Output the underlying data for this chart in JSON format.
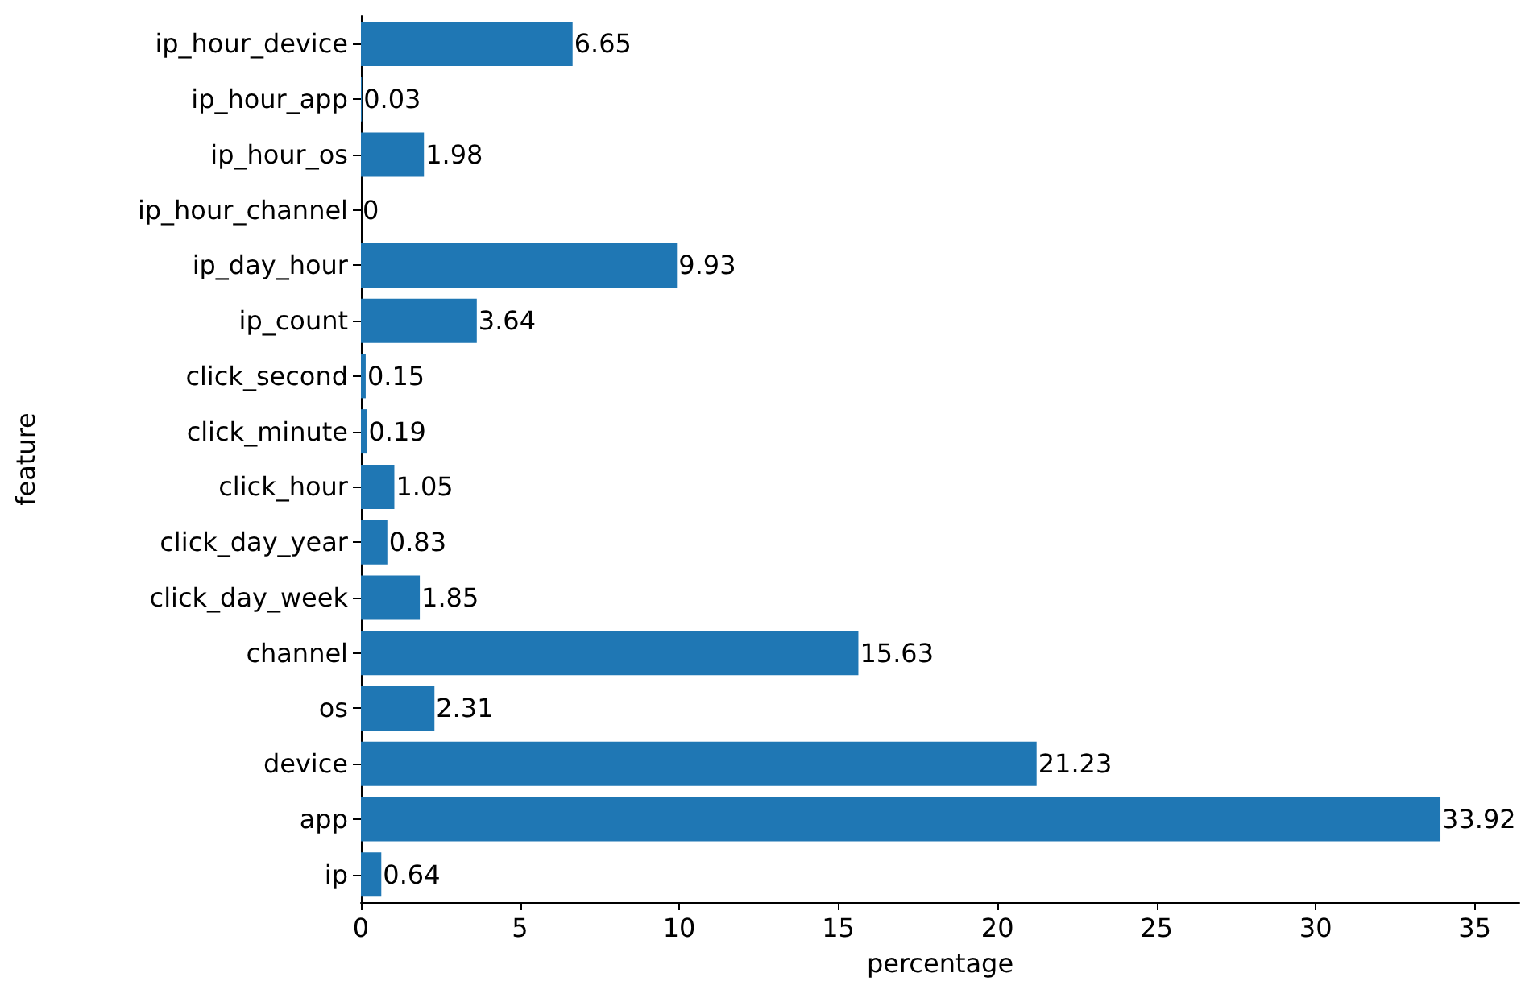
{
  "chart_data": {
    "type": "bar",
    "orientation": "horizontal",
    "xlabel": "percentage",
    "ylabel": "feature",
    "categories": [
      "ip_hour_device",
      "ip_hour_app",
      "ip_hour_os",
      "ip_hour_channel",
      "ip_day_hour",
      "ip_count",
      "click_second",
      "click_minute",
      "click_hour",
      "click_day_year",
      "click_day_week",
      "channel",
      "os",
      "device",
      "app",
      "ip"
    ],
    "values": [
      6.65,
      0.03,
      1.98,
      0,
      9.93,
      3.64,
      0.15,
      0.19,
      1.05,
      0.83,
      1.85,
      15.63,
      2.31,
      21.23,
      33.92,
      0.64
    ],
    "color": "#1f77b4",
    "xlim": [
      0,
      36.4
    ],
    "xticks": [
      0,
      5,
      10,
      15,
      20,
      25,
      30,
      35
    ],
    "data_labels": true
  }
}
